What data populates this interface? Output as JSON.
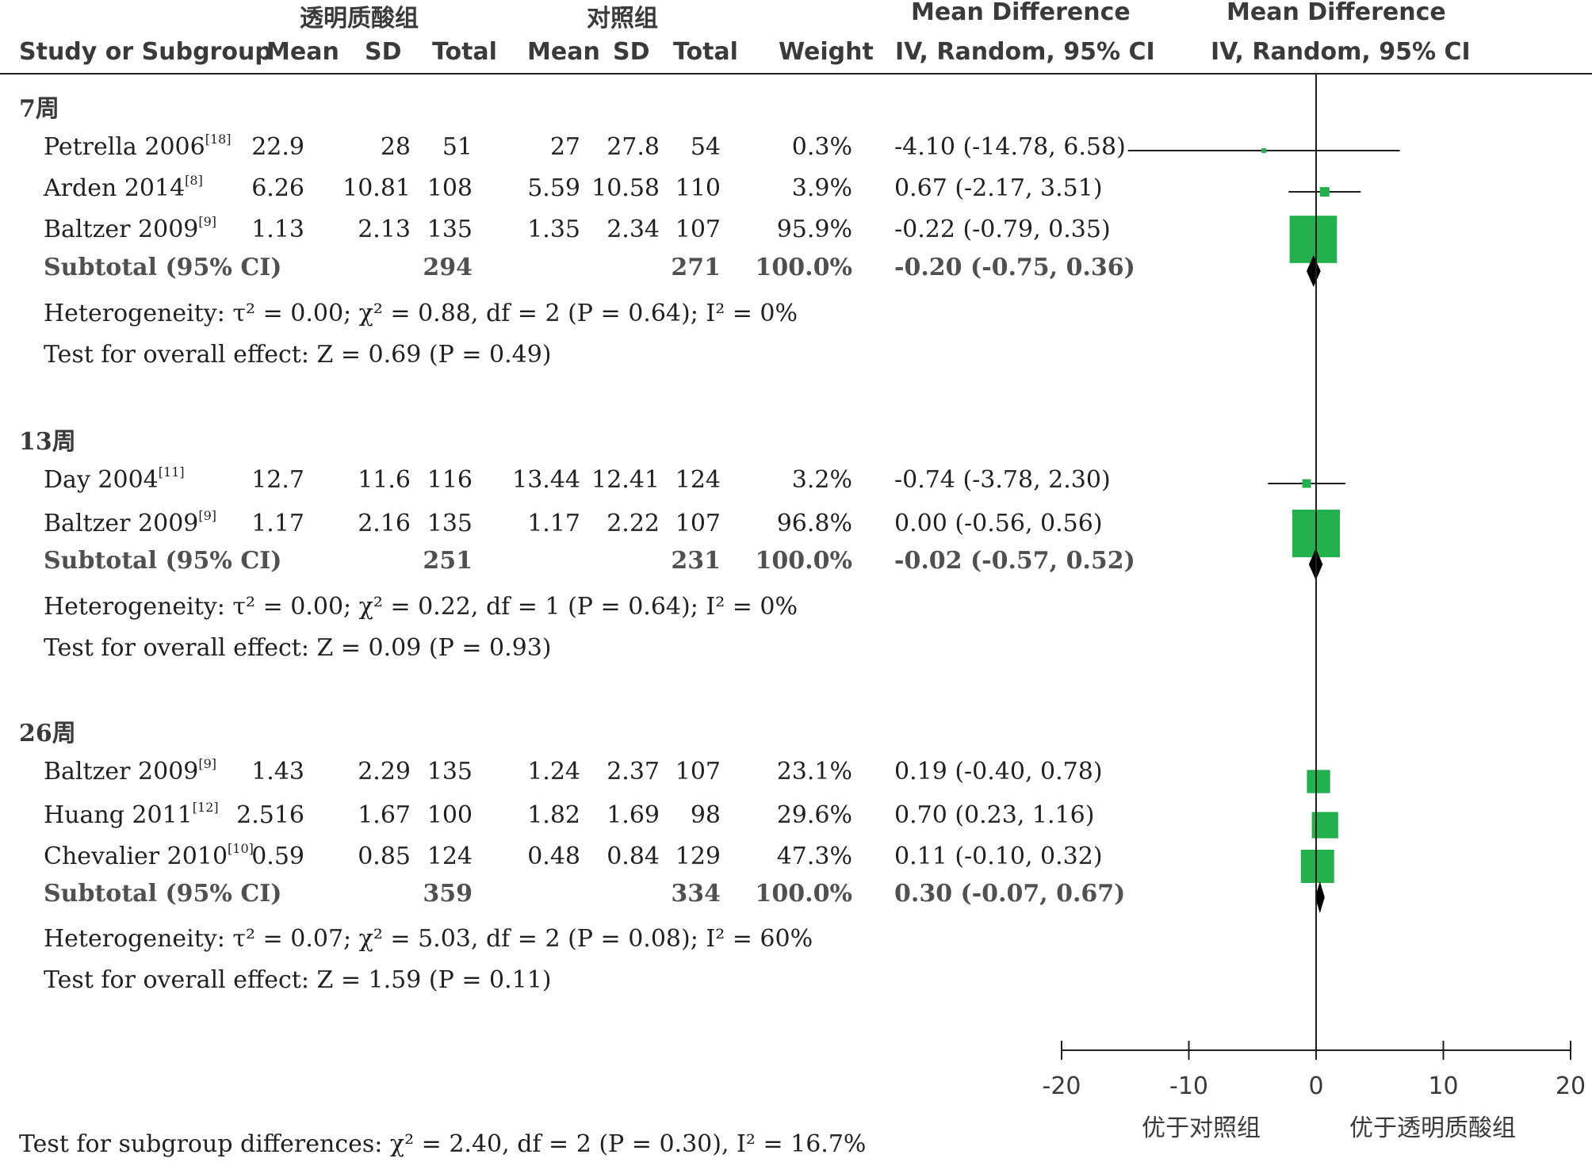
{
  "header": {
    "group1_label": "透明质酸组",
    "group2_label": "对照组",
    "md_title": "Mean Difference",
    "md_sub": "IV, Random, 95% CI",
    "plot_title": "Mean Difference",
    "plot_sub": "IV, Random, 95% CI",
    "col_study": "Study or Subgroup",
    "col_mean1": "Mean",
    "col_sd1": "SD",
    "col_total1": "Total",
    "col_mean2": "Mean",
    "col_sd2": "SD",
    "col_total2": "Total",
    "col_weight": "Weight"
  },
  "colors": {
    "box": "#22b14c",
    "diamond": "#000000",
    "line": "#231f20"
  },
  "subgroups": [
    {
      "label": "7周",
      "studies": [
        {
          "name": "Petrella 2006",
          "ref": "[18]",
          "mean1": "22.9",
          "sd1": "28",
          "total1": "51",
          "mean2": "27",
          "sd2": "27.8",
          "total2": "54",
          "weight": "0.3%",
          "ci_text": "-4.10 (-14.78, 6.58)",
          "md": -4.1,
          "lo": -14.78,
          "hi": 6.58,
          "w": 0.3
        },
        {
          "name": "Arden 2014",
          "ref": "[8]",
          "mean1": "6.26",
          "sd1": "10.81",
          "total1": "108",
          "mean2": "5.59",
          "sd2": "10.58",
          "total2": "110",
          "weight": "3.9%",
          "ci_text": "0.67 (-2.17, 3.51)",
          "md": 0.67,
          "lo": -2.17,
          "hi": 3.51,
          "w": 3.9
        },
        {
          "name": "Baltzer 2009",
          "ref": "[9]",
          "mean1": "1.13",
          "sd1": "2.13",
          "total1": "135",
          "mean2": "1.35",
          "sd2": "2.34",
          "total2": "107",
          "weight": "95.9%",
          "ci_text": "-0.22 (-0.79, 0.35)",
          "md": -0.22,
          "lo": -0.79,
          "hi": 0.35,
          "w": 95.9
        }
      ],
      "subtotal": {
        "label": "Subtotal (95% CI)",
        "total1": "294",
        "total2": "271",
        "weight": "100.0%",
        "ci_text": "-0.20 (-0.75, 0.36)",
        "md": -0.2,
        "lo": -0.75,
        "hi": 0.36
      },
      "heterogeneity": "Heterogeneity: τ² = 0.00; χ² = 0.88, df = 2 (P = 0.64); I² = 0%",
      "overall": "Test for overall effect: Z = 0.69 (P = 0.49)"
    },
    {
      "label": "13周",
      "studies": [
        {
          "name": "Day 2004",
          "ref": "[11]",
          "mean1": "12.7",
          "sd1": "11.6",
          "total1": "116",
          "mean2": "13.44",
          "sd2": "12.41",
          "total2": "124",
          "weight": "3.2%",
          "ci_text": "-0.74 (-3.78, 2.30)",
          "md": -0.74,
          "lo": -3.78,
          "hi": 2.3,
          "w": 3.2
        },
        {
          "name": "Baltzer 2009",
          "ref": "[9]",
          "mean1": "1.17",
          "sd1": "2.16",
          "total1": "135",
          "mean2": "1.17",
          "sd2": "2.22",
          "total2": "107",
          "weight": "96.8%",
          "ci_text": "0.00 (-0.56, 0.56)",
          "md": 0.0,
          "lo": -0.56,
          "hi": 0.56,
          "w": 96.8
        }
      ],
      "subtotal": {
        "label": "Subtotal (95% CI)",
        "total1": "251",
        "total2": "231",
        "weight": "100.0%",
        "ci_text": "-0.02 (-0.57, 0.52)",
        "md": -0.02,
        "lo": -0.57,
        "hi": 0.52
      },
      "heterogeneity": "Heterogeneity: τ² = 0.00; χ² = 0.22, df = 1 (P = 0.64); I² = 0%",
      "overall": "Test for overall effect: Z = 0.09 (P = 0.93)"
    },
    {
      "label": "26周",
      "studies": [
        {
          "name": "Baltzer 2009",
          "ref": "[9]",
          "mean1": "1.43",
          "sd1": "2.29",
          "total1": "135",
          "mean2": "1.24",
          "sd2": "2.37",
          "total2": "107",
          "weight": "23.1%",
          "ci_text": "0.19 (-0.40, 0.78)",
          "md": 0.19,
          "lo": -0.4,
          "hi": 0.78,
          "w": 23.1
        },
        {
          "name": "Huang 2011",
          "ref": "[12]",
          "mean1": "2.516",
          "sd1": "1.67",
          "total1": "100",
          "mean2": "1.82",
          "sd2": "1.69",
          "total2": "98",
          "weight": "29.6%",
          "ci_text": "0.70 (0.23, 1.16)",
          "md": 0.7,
          "lo": 0.23,
          "hi": 1.16,
          "w": 29.6
        },
        {
          "name": "Chevalier 2010",
          "ref": "[10]",
          "mean1": "0.59",
          "sd1": "0.85",
          "total1": "124",
          "mean2": "0.48",
          "sd2": "0.84",
          "total2": "129",
          "weight": "47.3%",
          "ci_text": "0.11 (-0.10, 0.32)",
          "md": 0.11,
          "lo": -0.1,
          "hi": 0.32,
          "w": 47.3
        }
      ],
      "subtotal": {
        "label": "Subtotal (95% CI)",
        "total1": "359",
        "total2": "334",
        "weight": "100.0%",
        "ci_text": "0.30 (-0.07, 0.67)",
        "md": 0.3,
        "lo": -0.07,
        "hi": 0.67
      },
      "heterogeneity": "Heterogeneity: τ² = 0.07; χ² = 5.03, df = 2 (P = 0.08); I² = 60%",
      "overall": "Test for overall effect: Z = 1.59 (P = 0.11)"
    }
  ],
  "footer": {
    "subgroup_test": "Test for subgroup differences: χ² = 2.40, df = 2 (P = 0.30), I² = 16.7%"
  },
  "axis": {
    "ticks": [
      "-20",
      "-10",
      "0",
      "10",
      "20"
    ],
    "left_label": "优于对照组",
    "right_label": "优于透明质酸组"
  },
  "chart_data": {
    "type": "forest",
    "xlim": [
      -20,
      20
    ],
    "ticks": [
      -20,
      -10,
      0,
      10,
      20
    ],
    "xlabel_left": "优于对照组",
    "xlabel_right": "优于透明质酸组"
  }
}
